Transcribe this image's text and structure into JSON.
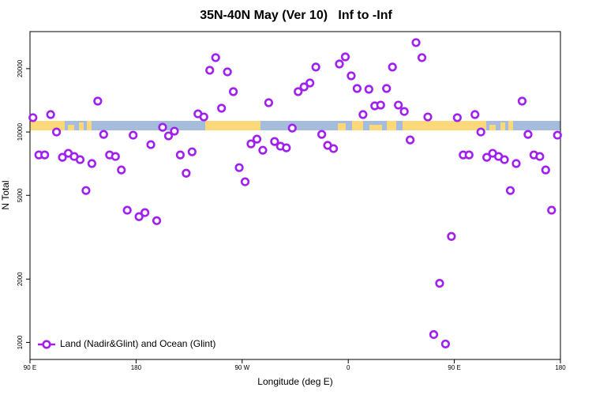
{
  "chart_data": {
    "type": "scatter",
    "title": "35N-40N May (Ver 10)   Inf to -Inf",
    "x_label": "Longitude (deg E)",
    "y_label": "N Total",
    "x": [
      92.5,
      97.5,
      102.5,
      107.5,
      112.5,
      117.5,
      122.5,
      127.5,
      132.5,
      137.5,
      142.5,
      147.5,
      152.5,
      157.5,
      162.5,
      167.5,
      172.5,
      177.5,
      182.5,
      187.5,
      192.5,
      197.5,
      202.5,
      207.5,
      212.5,
      217.5,
      222.5,
      227.5,
      232.5,
      237.5,
      242.5,
      247.5,
      252.5,
      257.5,
      262.5,
      267.5,
      272.5,
      277.5,
      282.5,
      287.5,
      292.5,
      297.5,
      302.5,
      307.5,
      312.5,
      317.5,
      322.5,
      327.5,
      332.5,
      337.5,
      342.5,
      347.5,
      352.5,
      357.5,
      362.5,
      367.5,
      372.5,
      377.5,
      382.5,
      387.5,
      392.5,
      397.5,
      402.5,
      407.5,
      412.5,
      417.5,
      422.5,
      427.5,
      432.5,
      437.5,
      442.5,
      447.5,
      452.5,
      457.5,
      462.5,
      467.5,
      472.5,
      477.5,
      482.5,
      487.5,
      492.5,
      497.5,
      502.5,
      507.5,
      512.5,
      517.5,
      522.5,
      527.5,
      532.5,
      537.5
    ],
    "series": [
      {
        "name": "Land (Nadir&Glint) and Ocean (Glint)",
        "color": "#a020f0",
        "values": [
          11700,
          7780,
          7780,
          12100,
          10000,
          7580,
          7920,
          7650,
          7390,
          5270,
          7080,
          14020,
          9740,
          7780,
          7650,
          6600,
          4250,
          9660,
          3960,
          4140,
          8710,
          3790,
          10530,
          9580,
          10090,
          7780,
          6370,
          8050,
          12200,
          11790,
          19650,
          22560,
          12970,
          19310,
          15550,
          6770,
          5800,
          8780,
          9250,
          8190,
          13780,
          9010,
          8560,
          8410,
          10440,
          15550,
          16380,
          17100,
          20350,
          9740,
          8640,
          8340,
          21050,
          22750,
          18490,
          16100,
          12100,
          15960,
          13310,
          13420,
          16100,
          20350,
          13420,
          12520,
          9170,
          26600,
          22560,
          11790,
          1090,
          1910,
          983,
          3190,
          11700,
          7780,
          7780,
          12100,
          10000,
          7580,
          7920,
          7650,
          7390,
          5270,
          7080,
          14020,
          9740,
          7780,
          7650,
          6600,
          4250,
          9660
        ]
      }
    ],
    "xlim": [
      90,
      540
    ],
    "xticks": [
      {
        "value": 90,
        "label": "90 E"
      },
      {
        "value": 180,
        "label": "180"
      },
      {
        "value": 270,
        "label": "90 W"
      },
      {
        "value": 360,
        "label": "0"
      },
      {
        "value": 450,
        "label": "90 E"
      },
      {
        "value": 540,
        "label": "180"
      }
    ],
    "ylim": [
      830,
      30000
    ],
    "yticks": [
      1000,
      2000,
      5000,
      10000,
      20000
    ],
    "y_scale": "log",
    "grid": false,
    "legend": "bottom-left"
  }
}
